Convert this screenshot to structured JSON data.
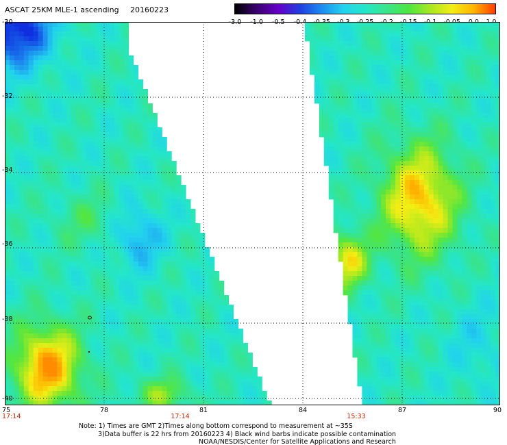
{
  "title": {
    "product": "ASCAT 25KM MLE-1 ascending",
    "date": "20160223"
  },
  "colorbar": {
    "labels": [
      "-3.0",
      "-1.0",
      "-0.5",
      "-0.4",
      "-0.35",
      "-0.3",
      "-0.25",
      "-0.2",
      "-0.15",
      "-0.1",
      "-0.05",
      "0.0",
      "1.0"
    ],
    "colors": [
      "#000000",
      "#3a0070",
      "#6400c8",
      "#1f3fe0",
      "#1c8cf0",
      "#22d2ee",
      "#24e6c8",
      "#3ae58a",
      "#4ce640",
      "#a8e820",
      "#f2ee14",
      "#ffb400",
      "#ff3c00"
    ]
  },
  "map": {
    "lat_labels": [
      "-30",
      "-32",
      "-34",
      "-36",
      "-38",
      "-40"
    ],
    "lon_labels": [
      "75",
      "78",
      "81",
      "84",
      "87",
      "90"
    ],
    "time_labels": [
      "17:14",
      "17:14",
      "15:33"
    ]
  },
  "notes": {
    "line1": "Note: 1) Times are GMT 2)Times along bottom correspond to measurement at ~35S",
    "line2": "3)Data buffer is 22 hrs from 20160223 4) Black wind barbs indicate possible contamination",
    "line3": "NOAA/NESDIS/Center for Satellite Applications and Research"
  }
}
